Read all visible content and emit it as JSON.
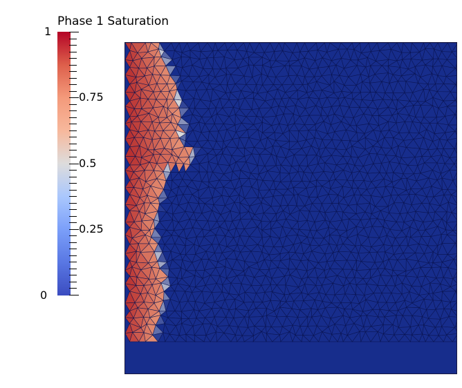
{
  "colorbar": {
    "title": "Phase 1 Saturation",
    "labels": [
      {
        "text": "1",
        "value": 1.0
      },
      {
        "text": "0.75",
        "value": 0.75
      },
      {
        "text": "0.5",
        "value": 0.5
      },
      {
        "text": "0.25",
        "value": 0.25
      },
      {
        "text": "0",
        "value": 0.0
      }
    ],
    "range": [
      0,
      1
    ],
    "colormap": [
      "#3b4cc0",
      "#dddcdc",
      "#b40426"
    ]
  },
  "colors": {
    "background": "#ffffff",
    "field_low": "#172d8c",
    "mesh_lines": "#0a1450",
    "front_high": "#b52a2c",
    "front_mid": "#e59073"
  }
}
